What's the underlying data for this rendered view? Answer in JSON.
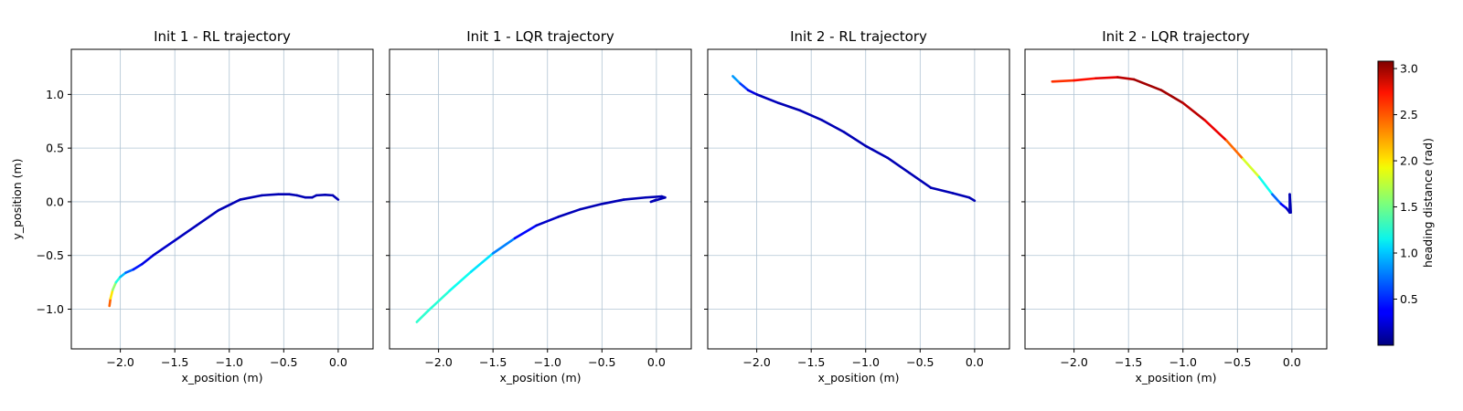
{
  "colorbar": {
    "label": "heading distance (rad)",
    "range": [
      0.0,
      3.08
    ],
    "ticks": [
      0.5,
      1.0,
      1.5,
      2.0,
      2.5,
      3.0
    ],
    "tick_labels": [
      "0.5",
      "1.0",
      "1.5",
      "2.0",
      "2.5",
      "3.0"
    ]
  },
  "axes": {
    "xlim": [
      -2.45,
      0.32
    ],
    "ylim": [
      -1.37,
      1.42
    ],
    "xticks": [
      -2.0,
      -1.5,
      -1.0,
      -0.5,
      0.0
    ],
    "xtick_labels": [
      "−2.0",
      "−1.5",
      "−1.0",
      "−0.5",
      "0.0"
    ],
    "yticks": [
      -1.0,
      -0.5,
      0.0,
      0.5,
      1.0
    ],
    "ytick_labels": [
      "−1.0",
      "−0.5",
      "0.0",
      "0.5",
      "1.0"
    ],
    "xlabel": "x_position (m)",
    "ylabel": "y_position (m)"
  },
  "chart_data": [
    {
      "type": "line",
      "title": "Init 1 - RL trajectory",
      "xlabel": "x_position (m)",
      "ylabel": "y_position (m)",
      "points": [
        [
          -2.1,
          -0.97,
          2.6
        ],
        [
          -2.09,
          -0.9,
          2.2
        ],
        [
          -2.07,
          -0.82,
          1.8
        ],
        [
          -2.04,
          -0.75,
          1.4
        ],
        [
          -2.0,
          -0.7,
          1.1
        ],
        [
          -1.95,
          -0.66,
          0.8
        ],
        [
          -1.88,
          -0.63,
          0.55
        ],
        [
          -1.8,
          -0.58,
          0.35
        ],
        [
          -1.7,
          -0.5,
          0.25
        ],
        [
          -1.5,
          -0.36,
          0.2
        ],
        [
          -1.3,
          -0.22,
          0.18
        ],
        [
          -1.1,
          -0.08,
          0.16
        ],
        [
          -0.9,
          0.02,
          0.16
        ],
        [
          -0.7,
          0.06,
          0.16
        ],
        [
          -0.55,
          0.07,
          0.16
        ],
        [
          -0.45,
          0.07,
          0.16
        ],
        [
          -0.38,
          0.06,
          0.16
        ],
        [
          -0.3,
          0.04,
          0.16
        ],
        [
          -0.24,
          0.04,
          0.16
        ],
        [
          -0.2,
          0.06,
          0.16
        ],
        [
          -0.12,
          0.065,
          0.16
        ],
        [
          -0.05,
          0.06,
          0.16
        ],
        [
          0.0,
          0.02,
          0.16
        ]
      ]
    },
    {
      "type": "line",
      "title": "Init 1 - LQR trajectory",
      "xlabel": "x_position (m)",
      "ylabel": "",
      "points": [
        [
          -2.2,
          -1.12,
          1.3
        ],
        [
          -2.1,
          -1.02,
          1.3
        ],
        [
          -1.9,
          -0.83,
          1.25
        ],
        [
          -1.7,
          -0.65,
          1.15
        ],
        [
          -1.5,
          -0.48,
          1.0
        ],
        [
          -1.3,
          -0.34,
          0.55
        ],
        [
          -1.1,
          -0.22,
          0.25
        ],
        [
          -0.9,
          -0.14,
          0.18
        ],
        [
          -0.7,
          -0.07,
          0.16
        ],
        [
          -0.5,
          -0.02,
          0.16
        ],
        [
          -0.3,
          0.02,
          0.16
        ],
        [
          -0.1,
          0.04,
          0.16
        ],
        [
          0.05,
          0.05,
          0.16
        ],
        [
          0.08,
          0.04,
          0.16
        ],
        [
          -0.05,
          0.0,
          0.16
        ],
        [
          0.0,
          0.02,
          0.16
        ]
      ]
    },
    {
      "type": "line",
      "title": "Init 2 - RL trajectory",
      "xlabel": "x_position (m)",
      "ylabel": "",
      "points": [
        [
          -2.22,
          1.17,
          1.0
        ],
        [
          -2.15,
          1.1,
          0.7
        ],
        [
          -2.08,
          1.04,
          0.4
        ],
        [
          -2.0,
          1.0,
          0.2
        ],
        [
          -1.8,
          0.92,
          0.16
        ],
        [
          -1.6,
          0.85,
          0.16
        ],
        [
          -1.4,
          0.76,
          0.16
        ],
        [
          -1.2,
          0.65,
          0.16
        ],
        [
          -1.0,
          0.52,
          0.16
        ],
        [
          -0.8,
          0.41,
          0.16
        ],
        [
          -0.6,
          0.27,
          0.16
        ],
        [
          -0.4,
          0.13,
          0.16
        ],
        [
          -0.2,
          0.08,
          0.16
        ],
        [
          -0.05,
          0.04,
          0.16
        ],
        [
          0.0,
          0.01,
          0.16
        ]
      ]
    },
    {
      "type": "line",
      "title": "Init 2 - LQR trajectory",
      "xlabel": "x_position (m)",
      "ylabel": "",
      "points": [
        [
          -2.2,
          1.12,
          2.5
        ],
        [
          -2.0,
          1.13,
          2.6
        ],
        [
          -1.8,
          1.15,
          2.7
        ],
        [
          -1.6,
          1.16,
          2.85
        ],
        [
          -1.45,
          1.14,
          2.95
        ],
        [
          -1.2,
          1.04,
          3.0
        ],
        [
          -1.0,
          0.92,
          2.95
        ],
        [
          -0.8,
          0.76,
          2.85
        ],
        [
          -0.6,
          0.57,
          2.65
        ],
        [
          -0.45,
          0.4,
          2.1
        ],
        [
          -0.3,
          0.23,
          1.5
        ],
        [
          -0.18,
          0.07,
          0.9
        ],
        [
          -0.1,
          -0.02,
          0.5
        ],
        [
          -0.05,
          -0.06,
          0.25
        ],
        [
          -0.02,
          -0.1,
          0.16
        ],
        [
          -0.02,
          0.07,
          0.16
        ],
        [
          -0.01,
          -0.1,
          0.16
        ]
      ]
    }
  ]
}
